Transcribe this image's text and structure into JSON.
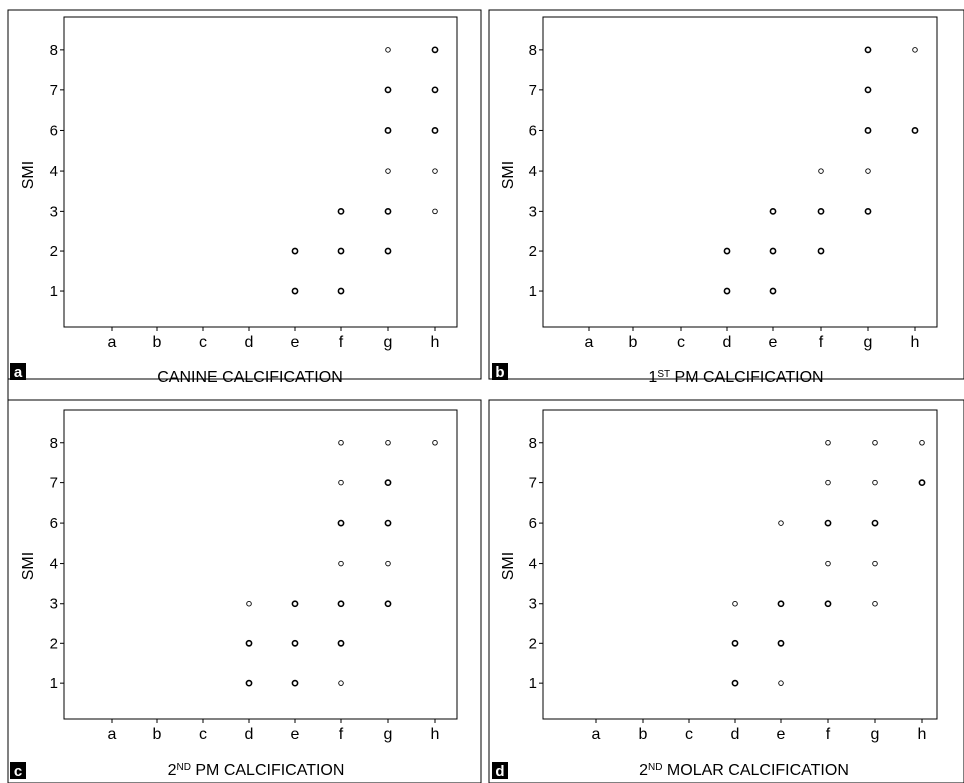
{
  "chart_data": [
    {
      "type": "scatter",
      "panel_label": "a",
      "xlabel": "CANINE CALCIFICATION",
      "ylabel": "SMI",
      "x_categories": [
        "a",
        "b",
        "c",
        "d",
        "e",
        "f",
        "g",
        "h"
      ],
      "y_ticks": [
        1,
        2,
        3,
        4,
        6,
        7,
        8
      ],
      "grid": false,
      "points": [
        {
          "x": "e",
          "y": 1,
          "marker": "bold"
        },
        {
          "x": "e",
          "y": 2,
          "marker": "bold"
        },
        {
          "x": "f",
          "y": 1,
          "marker": "bold"
        },
        {
          "x": "f",
          "y": 2,
          "marker": "bold"
        },
        {
          "x": "f",
          "y": 3,
          "marker": "bold"
        },
        {
          "x": "g",
          "y": 2,
          "marker": "bold"
        },
        {
          "x": "g",
          "y": 3,
          "marker": "bold"
        },
        {
          "x": "g",
          "y": 4,
          "marker": "open"
        },
        {
          "x": "g",
          "y": 6,
          "marker": "bold"
        },
        {
          "x": "g",
          "y": 7,
          "marker": "bold"
        },
        {
          "x": "g",
          "y": 8,
          "marker": "open"
        },
        {
          "x": "h",
          "y": 3,
          "marker": "open"
        },
        {
          "x": "h",
          "y": 4,
          "marker": "open"
        },
        {
          "x": "h",
          "y": 6,
          "marker": "bold"
        },
        {
          "x": "h",
          "y": 7,
          "marker": "bold"
        },
        {
          "x": "h",
          "y": 8,
          "marker": "bold"
        }
      ]
    },
    {
      "type": "scatter",
      "panel_label": "b",
      "xlabel_sup": "ST",
      "xlabel_pre": "1",
      "xlabel_post": "  PM  CALCIFICATION",
      "ylabel": "SMI",
      "x_categories": [
        "a",
        "b",
        "c",
        "d",
        "e",
        "f",
        "g",
        "h"
      ],
      "y_ticks": [
        1,
        2,
        3,
        4,
        6,
        7,
        8
      ],
      "grid": false,
      "points": [
        {
          "x": "d",
          "y": 1,
          "marker": "bold"
        },
        {
          "x": "d",
          "y": 2,
          "marker": "bold"
        },
        {
          "x": "e",
          "y": 1,
          "marker": "bold"
        },
        {
          "x": "e",
          "y": 2,
          "marker": "bold"
        },
        {
          "x": "e",
          "y": 3,
          "marker": "bold"
        },
        {
          "x": "f",
          "y": 2,
          "marker": "bold"
        },
        {
          "x": "f",
          "y": 3,
          "marker": "bold"
        },
        {
          "x": "f",
          "y": 4,
          "marker": "open"
        },
        {
          "x": "g",
          "y": 3,
          "marker": "bold"
        },
        {
          "x": "g",
          "y": 4,
          "marker": "open"
        },
        {
          "x": "g",
          "y": 6,
          "marker": "bold"
        },
        {
          "x": "g",
          "y": 7,
          "marker": "bold"
        },
        {
          "x": "g",
          "y": 8,
          "marker": "bold"
        },
        {
          "x": "h",
          "y": 6,
          "marker": "bold"
        },
        {
          "x": "h",
          "y": 8,
          "marker": "open"
        }
      ]
    },
    {
      "type": "scatter",
      "panel_label": "c",
      "xlabel_pre": "2",
      "xlabel_sup": "ND",
      "xlabel_post": " PM CALCIFICATION",
      "ylabel": "SMI",
      "x_categories": [
        "a",
        "b",
        "c",
        "d",
        "e",
        "f",
        "g",
        "h"
      ],
      "y_ticks": [
        1,
        2,
        3,
        4,
        6,
        7,
        8
      ],
      "grid": false,
      "points": [
        {
          "x": "d",
          "y": 1,
          "marker": "bold"
        },
        {
          "x": "d",
          "y": 2,
          "marker": "bold"
        },
        {
          "x": "d",
          "y": 3,
          "marker": "open"
        },
        {
          "x": "e",
          "y": 1,
          "marker": "bold"
        },
        {
          "x": "e",
          "y": 2,
          "marker": "bold"
        },
        {
          "x": "e",
          "y": 3,
          "marker": "bold"
        },
        {
          "x": "f",
          "y": 1,
          "marker": "open"
        },
        {
          "x": "f",
          "y": 2,
          "marker": "bold"
        },
        {
          "x": "f",
          "y": 3,
          "marker": "bold"
        },
        {
          "x": "f",
          "y": 4,
          "marker": "open"
        },
        {
          "x": "f",
          "y": 6,
          "marker": "bold"
        },
        {
          "x": "f",
          "y": 7,
          "marker": "open"
        },
        {
          "x": "f",
          "y": 8,
          "marker": "open"
        },
        {
          "x": "g",
          "y": 3,
          "marker": "bold"
        },
        {
          "x": "g",
          "y": 4,
          "marker": "open"
        },
        {
          "x": "g",
          "y": 6,
          "marker": "bold"
        },
        {
          "x": "g",
          "y": 7,
          "marker": "bold"
        },
        {
          "x": "g",
          "y": 8,
          "marker": "open"
        },
        {
          "x": "h",
          "y": 8,
          "marker": "open"
        }
      ]
    },
    {
      "type": "scatter",
      "panel_label": "d",
      "xlabel_pre": "2",
      "xlabel_sup": "ND",
      "xlabel_post": " MOLAR CALCIFICATION",
      "ylabel": "SMI",
      "x_categories": [
        "a",
        "b",
        "c",
        "d",
        "e",
        "f",
        "g",
        "h"
      ],
      "y_ticks": [
        1,
        2,
        3,
        4,
        6,
        7,
        8
      ],
      "grid": false,
      "points": [
        {
          "x": "d",
          "y": 1,
          "marker": "bold"
        },
        {
          "x": "d",
          "y": 2,
          "marker": "bold"
        },
        {
          "x": "d",
          "y": 3,
          "marker": "open"
        },
        {
          "x": "e",
          "y": 1,
          "marker": "open"
        },
        {
          "x": "e",
          "y": 2,
          "marker": "bold"
        },
        {
          "x": "e",
          "y": 3,
          "marker": "bold"
        },
        {
          "x": "e",
          "y": 6,
          "marker": "open"
        },
        {
          "x": "f",
          "y": 3,
          "marker": "bold"
        },
        {
          "x": "f",
          "y": 4,
          "marker": "open"
        },
        {
          "x": "f",
          "y": 6,
          "marker": "bold"
        },
        {
          "x": "f",
          "y": 7,
          "marker": "open"
        },
        {
          "x": "f",
          "y": 8,
          "marker": "open"
        },
        {
          "x": "g",
          "y": 3,
          "marker": "open"
        },
        {
          "x": "g",
          "y": 4,
          "marker": "open"
        },
        {
          "x": "g",
          "y": 6,
          "marker": "bold"
        },
        {
          "x": "g",
          "y": 7,
          "marker": "open"
        },
        {
          "x": "g",
          "y": 8,
          "marker": "open"
        },
        {
          "x": "h",
          "y": 7,
          "marker": "bold"
        },
        {
          "x": "h",
          "y": 8,
          "marker": "open"
        }
      ]
    }
  ]
}
